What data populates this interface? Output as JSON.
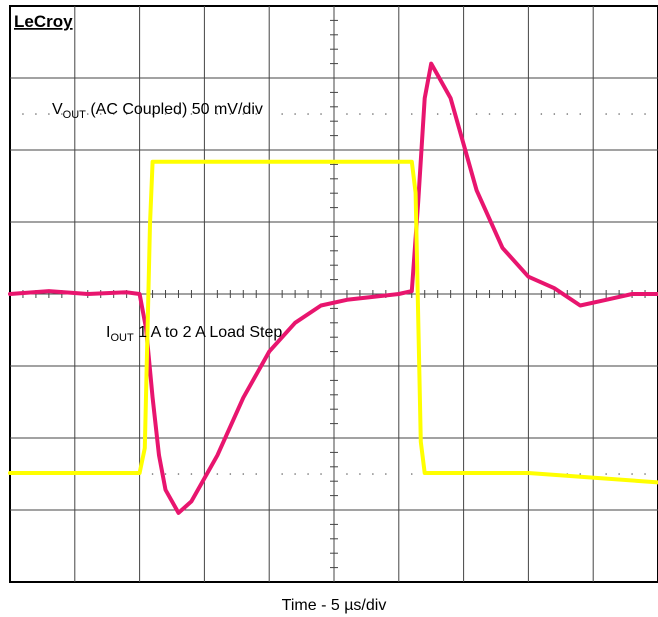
{
  "brand": "LeCroy",
  "chart_data": {
    "type": "line",
    "title": "",
    "xlabel": "Time - 5 µs/div",
    "ylabel": "",
    "grid": true,
    "x_units": "µs",
    "xlim": [
      0,
      50
    ],
    "series": [
      {
        "name_main": "V",
        "name_sub": "OUT",
        "name_rest": " (AC Coupled) 50 mV/div",
        "color": "#e8156e",
        "units": "mV",
        "ylim": [
          -50,
          50
        ],
        "x": [
          0,
          3,
          6,
          9,
          10,
          10.5,
          11,
          11.5,
          12,
          13,
          14,
          16,
          18,
          20,
          22,
          24,
          26,
          28,
          30,
          31,
          31.5,
          32,
          32.5,
          33,
          34,
          35,
          36,
          38,
          40,
          42,
          44,
          46,
          48,
          50
        ],
        "values": [
          0,
          0.5,
          0,
          0.3,
          0,
          -6,
          -18,
          -28,
          -34,
          -38,
          -36,
          -28,
          -18,
          -10,
          -5,
          -2,
          -1,
          -0.5,
          0,
          0.5,
          16,
          34,
          40,
          38,
          34,
          26,
          18,
          8,
          3,
          1,
          -2,
          -1,
          0,
          0
        ]
      },
      {
        "name_main": "I",
        "name_sub": "OUT",
        "name_rest": " 1 A to 2 A Load Step",
        "color": "#ffff00",
        "units": "A",
        "ylim": [
          0.65,
          2.5
        ],
        "x": [
          0,
          5,
          10,
          10.4,
          10.8,
          11,
          20,
          31,
          31.3,
          31.7,
          32,
          40,
          50
        ],
        "values": [
          1,
          1,
          1,
          1.08,
          1.8,
          2,
          2,
          2,
          1.9,
          1.1,
          1,
          1,
          0.97
        ]
      }
    ]
  }
}
